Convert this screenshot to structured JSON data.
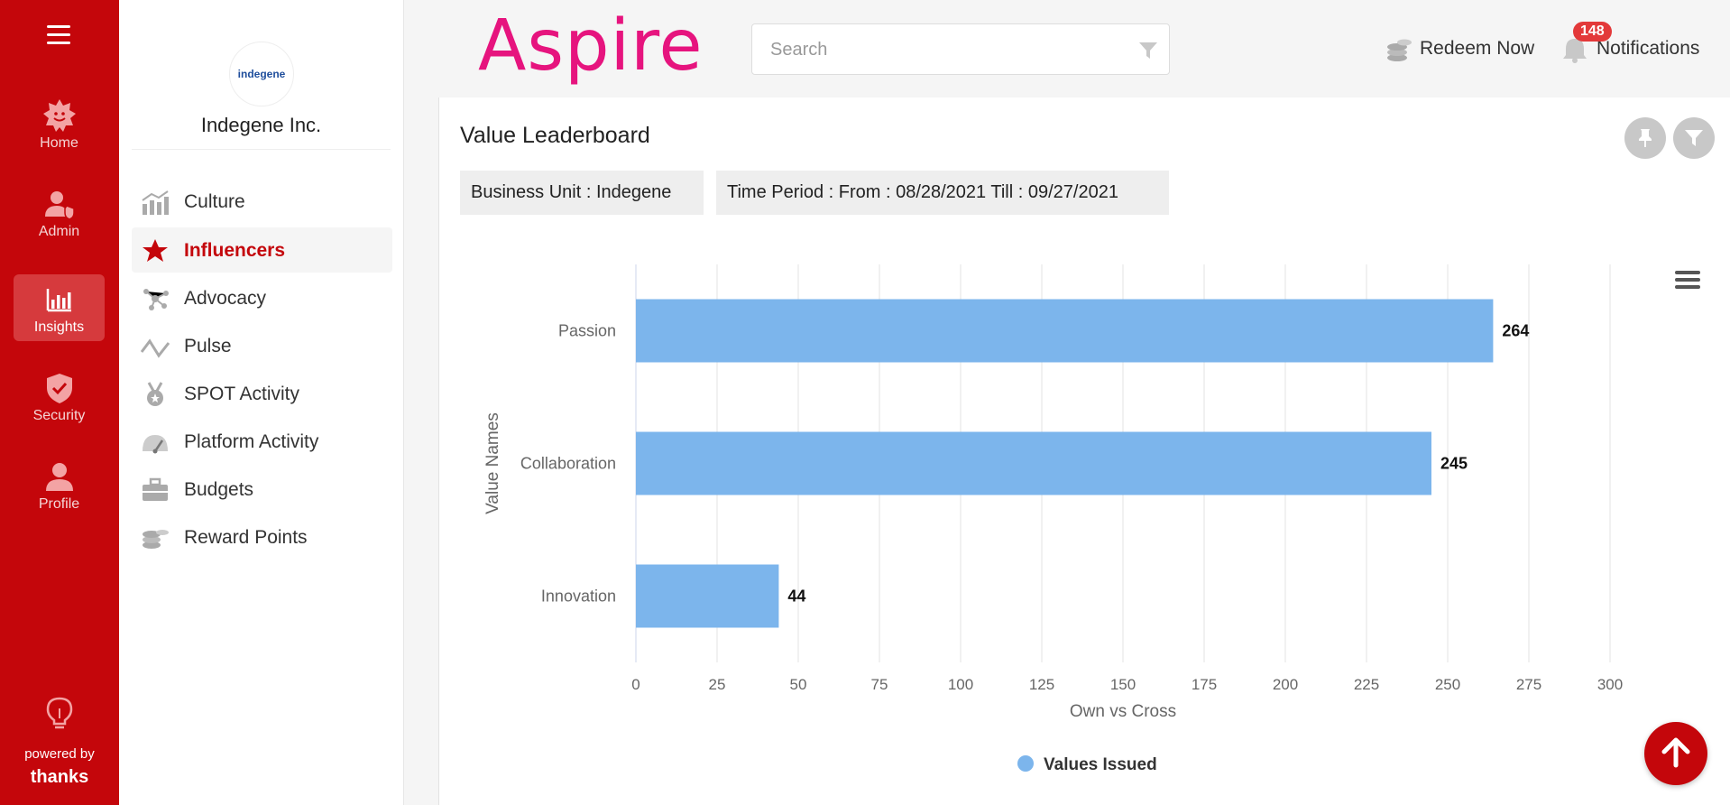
{
  "rail": {
    "items": [
      {
        "label": "Home",
        "icon": "sun-face-icon"
      },
      {
        "label": "Admin",
        "icon": "admin-user-icon"
      },
      {
        "label": "Insights",
        "icon": "bar-chart-icon"
      },
      {
        "label": "Security",
        "icon": "shield-check-icon"
      },
      {
        "label": "Profile",
        "icon": "user-icon"
      }
    ],
    "active": "Insights",
    "powered_by": "powered by",
    "brand": "thanks"
  },
  "sidebar": {
    "org_logo_text": "indegene",
    "org_name": "Indegene Inc.",
    "items": [
      {
        "label": "Culture",
        "icon": "bar-growth-icon"
      },
      {
        "label": "Influencers",
        "icon": "star-icon"
      },
      {
        "label": "Advocacy",
        "icon": "network-icon"
      },
      {
        "label": "Pulse",
        "icon": "pulse-line-icon"
      },
      {
        "label": "SPOT Activity",
        "icon": "medal-icon"
      },
      {
        "label": "Platform Activity",
        "icon": "gauge-icon"
      },
      {
        "label": "Budgets",
        "icon": "briefcase-icon"
      },
      {
        "label": "Reward Points",
        "icon": "coins-icon"
      }
    ],
    "active": "Influencers"
  },
  "header": {
    "brand": "Aspire",
    "search_placeholder": "Search",
    "redeem_label": "Redeem Now",
    "notifications_label": "Notifications",
    "notifications_count": "148"
  },
  "main": {
    "title": "Value Leaderboard",
    "business_unit": "Business Unit : Indegene",
    "time_period": "Time Period : From : 08/28/2021 Till : 09/27/2021"
  },
  "colors": {
    "primary_red": "#c4060b",
    "brand_pink": "#e6147e",
    "bar_blue": "#7cb5ec"
  },
  "chart_data": {
    "type": "bar",
    "orientation": "horizontal",
    "categories": [
      "Passion",
      "Collaboration",
      "Innovation"
    ],
    "series": [
      {
        "name": "Values Issued",
        "values": [
          264,
          245,
          44
        ]
      }
    ],
    "xlabel": "Own vs Cross",
    "ylabel": "Value Names",
    "xlim": [
      0,
      300
    ],
    "xticks": [
      0,
      25,
      50,
      75,
      100,
      125,
      150,
      175,
      200,
      225,
      250,
      275,
      300
    ],
    "grid": true,
    "legend": "bottom-center",
    "data_labels": true
  }
}
